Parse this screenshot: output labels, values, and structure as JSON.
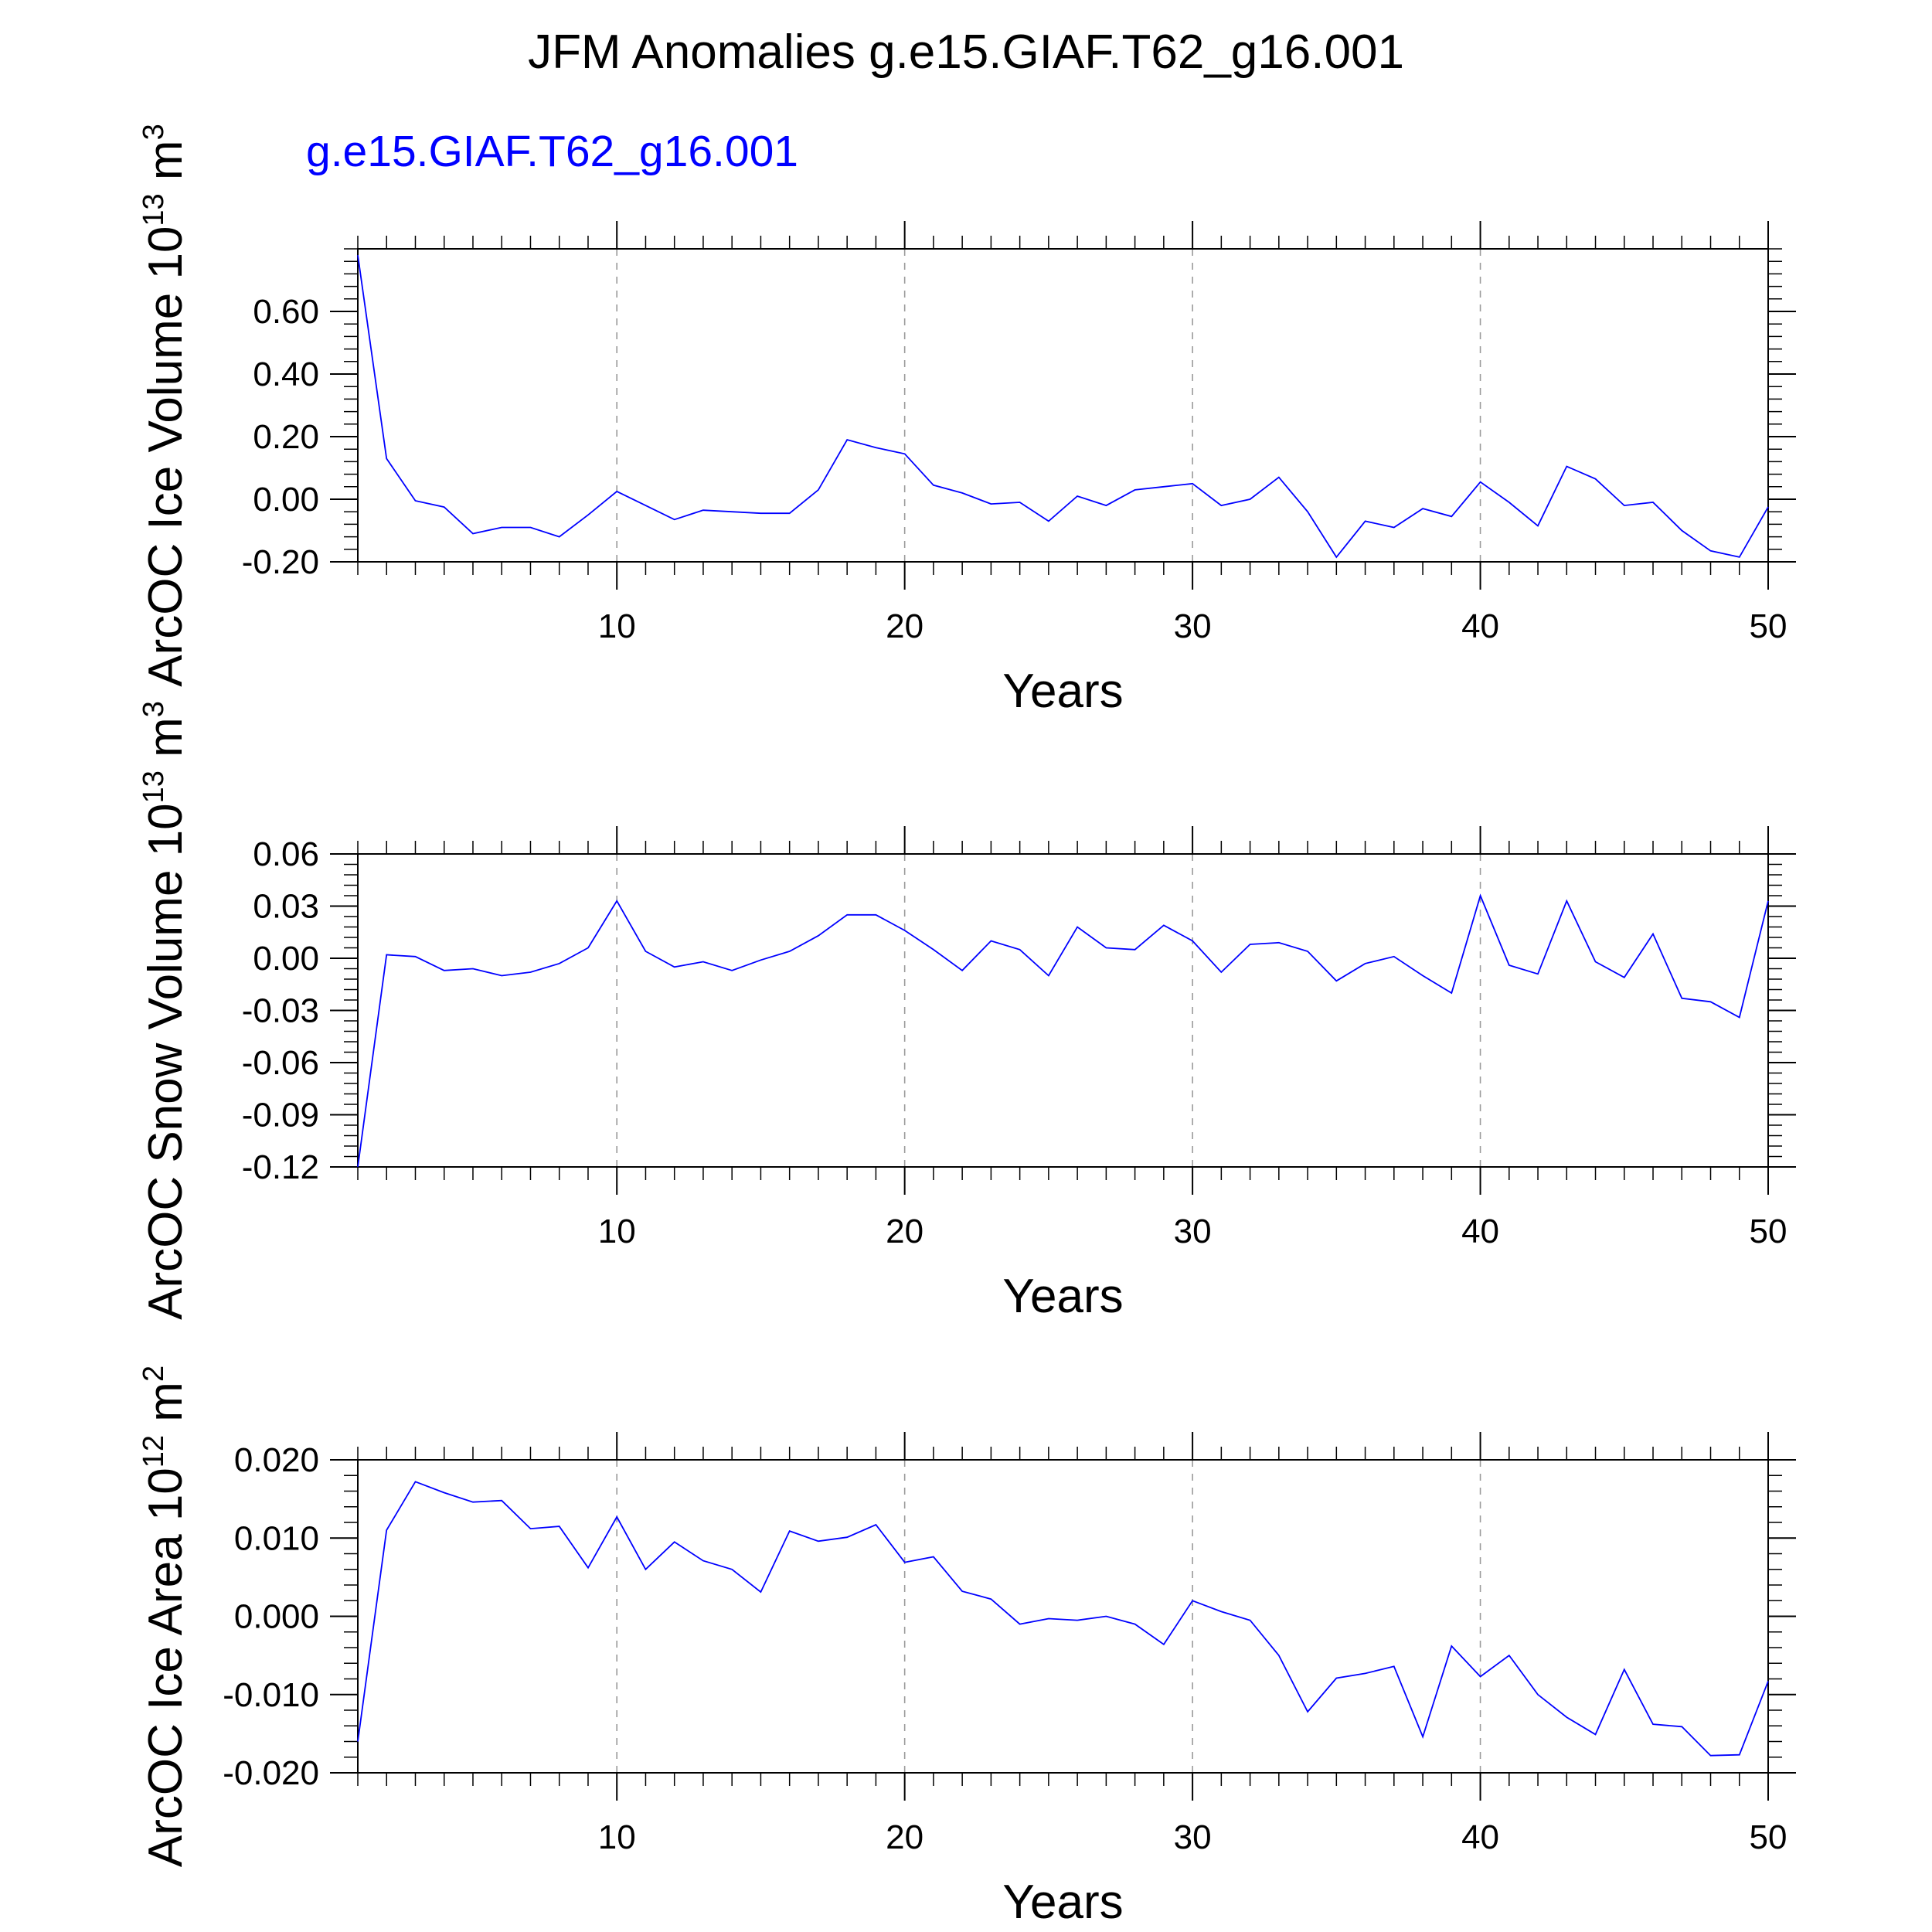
{
  "title": "JFM Anomalies g.e15.GIAF.T62_g16.001",
  "legend_label": "g.e15.GIAF.T62_g16.001",
  "line_color": "#0000ff",
  "chart_data": [
    {
      "type": "line",
      "ylabel_main": "ArcOC Ice Volume 10",
      "ylabel_exp": "13",
      "ylabel_unit": " m",
      "ylabel_unit_exp": "3",
      "xlabel": "Years",
      "xlim": [
        1,
        50
      ],
      "ylim": [
        -0.2,
        0.8
      ],
      "yticks": [
        -0.2,
        0.0,
        0.2,
        0.4,
        0.6
      ],
      "ytick_labels": [
        "-0.20",
        "0.00",
        "0.20",
        "0.40",
        "0.60"
      ],
      "xticks": [
        10,
        20,
        30,
        40,
        50
      ],
      "xtick_labels": [
        "10",
        "20",
        "30",
        "40",
        "50"
      ],
      "series": [
        {
          "x": [
            1,
            2,
            3,
            4,
            5,
            6,
            7,
            8,
            9,
            10,
            11,
            12,
            13,
            14,
            15,
            16,
            17,
            18,
            19,
            20,
            21,
            22,
            23,
            24,
            25,
            26,
            27,
            28,
            29,
            30,
            31,
            32,
            33,
            34,
            35,
            36,
            37,
            38,
            39,
            40,
            41,
            42,
            43,
            44,
            45,
            46,
            47,
            48,
            49,
            50
          ],
          "values": [
            0.78,
            0.13,
            -0.005,
            -0.025,
            -0.11,
            -0.09,
            -0.09,
            -0.12,
            -0.05,
            0.025,
            -0.02,
            -0.065,
            -0.035,
            -0.04,
            -0.045,
            -0.045,
            0.03,
            0.19,
            0.165,
            0.145,
            0.045,
            0.02,
            -0.015,
            -0.01,
            -0.07,
            0.01,
            -0.02,
            0.03,
            0.04,
            0.05,
            -0.02,
            0.0,
            0.07,
            -0.04,
            -0.185,
            -0.07,
            -0.09,
            -0.03,
            -0.055,
            0.055,
            -0.01,
            -0.085,
            0.105,
            0.065,
            -0.02,
            -0.01,
            -0.1,
            -0.165,
            -0.185,
            -0.025
          ]
        }
      ]
    },
    {
      "type": "line",
      "ylabel_main": "ArcOC Snow Volume 10",
      "ylabel_exp": "13",
      "ylabel_unit": " m",
      "ylabel_unit_exp": "3",
      "xlabel": "Years",
      "xlim": [
        1,
        50
      ],
      "ylim": [
        -0.12,
        0.06
      ],
      "yticks": [
        -0.12,
        -0.09,
        -0.06,
        -0.03,
        0.0,
        0.03,
        0.06
      ],
      "ytick_labels": [
        "-0.12",
        "-0.09",
        "-0.06",
        "-0.03",
        "0.00",
        "0.03",
        "0.06"
      ],
      "xticks": [
        10,
        20,
        30,
        40,
        50
      ],
      "xtick_labels": [
        "10",
        "20",
        "30",
        "40",
        "50"
      ],
      "series": [
        {
          "x": [
            1,
            2,
            3,
            4,
            5,
            6,
            7,
            8,
            9,
            10,
            11,
            12,
            13,
            14,
            15,
            16,
            17,
            18,
            19,
            20,
            21,
            22,
            23,
            24,
            25,
            26,
            27,
            28,
            29,
            30,
            31,
            32,
            33,
            34,
            35,
            36,
            37,
            38,
            39,
            40,
            41,
            42,
            43,
            44,
            45,
            46,
            47,
            48,
            49,
            50
          ],
          "values": [
            -0.12,
            0.002,
            0.001,
            -0.007,
            -0.006,
            -0.01,
            -0.008,
            -0.003,
            0.006,
            0.033,
            0.004,
            -0.005,
            -0.002,
            -0.007,
            -0.001,
            0.004,
            0.013,
            0.025,
            0.025,
            0.016,
            0.005,
            -0.007,
            0.01,
            0.005,
            -0.01,
            0.018,
            0.006,
            0.005,
            0.019,
            0.01,
            -0.008,
            0.008,
            0.009,
            0.004,
            -0.013,
            -0.003,
            0.001,
            -0.01,
            -0.02,
            0.036,
            -0.004,
            -0.009,
            0.033,
            -0.002,
            -0.011,
            0.014,
            -0.023,
            -0.025,
            -0.034,
            0.033
          ]
        }
      ]
    },
    {
      "type": "line",
      "ylabel_main": "ArcOC Ice Area 10",
      "ylabel_exp": "12",
      "ylabel_unit": " m",
      "ylabel_unit_exp": "2",
      "xlabel": "Years",
      "xlim": [
        1,
        50
      ],
      "ylim": [
        -0.02,
        0.02
      ],
      "yticks": [
        -0.02,
        -0.01,
        0.0,
        0.01,
        0.02
      ],
      "ytick_labels": [
        "-0.020",
        "-0.010",
        "0.000",
        "0.010",
        "0.020"
      ],
      "xticks": [
        10,
        20,
        30,
        40,
        50
      ],
      "xtick_labels": [
        "10",
        "20",
        "30",
        "40",
        "50"
      ],
      "series": [
        {
          "x": [
            1,
            2,
            3,
            4,
            5,
            6,
            7,
            8,
            9,
            10,
            11,
            12,
            13,
            14,
            15,
            16,
            17,
            18,
            19,
            20,
            21,
            22,
            23,
            24,
            25,
            26,
            27,
            28,
            29,
            30,
            31,
            32,
            33,
            34,
            35,
            36,
            37,
            38,
            39,
            40,
            41,
            42,
            43,
            44,
            45,
            46,
            47,
            48,
            49,
            50
          ],
          "values": [
            -0.016,
            0.011,
            0.0172,
            0.0158,
            0.0146,
            0.0148,
            0.0112,
            0.0115,
            0.0062,
            0.0127,
            0.006,
            0.0095,
            0.0071,
            0.006,
            0.0031,
            0.0109,
            0.0096,
            0.0101,
            0.0117,
            0.0069,
            0.0076,
            0.0032,
            0.0022,
            -0.001,
            -0.0003,
            -0.0005,
            0.0,
            -0.001,
            -0.0036,
            0.002,
            0.0006,
            -0.0005,
            -0.005,
            -0.0122,
            -0.0079,
            -0.0073,
            -0.0064,
            -0.0154,
            -0.0038,
            -0.0077,
            -0.005,
            -0.01,
            -0.0129,
            -0.0151,
            -0.0068,
            -0.0138,
            -0.0141,
            -0.0178,
            -0.0177,
            -0.0083
          ]
        }
      ]
    }
  ]
}
